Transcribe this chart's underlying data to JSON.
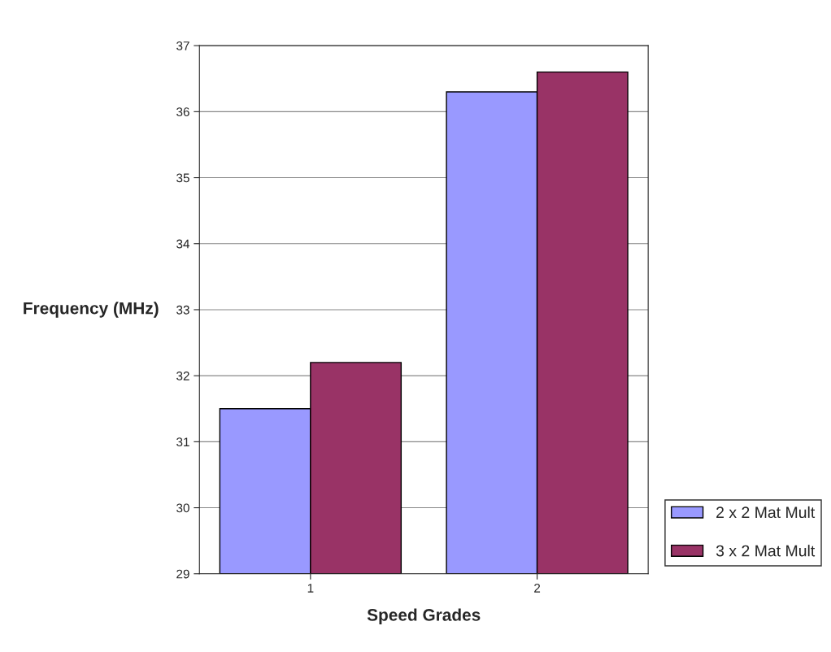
{
  "chart_data": {
    "type": "bar",
    "xlabel": "Speed Grades",
    "ylabel": "Frequency (MHz)",
    "categories": [
      "1",
      "2"
    ],
    "series": [
      {
        "name": "2 x 2 Mat Mult",
        "color": "#9999ff",
        "values": [
          31.5,
          36.3
        ]
      },
      {
        "name": "3 x 2 Mat Mult",
        "color": "#993366",
        "values": [
          32.2,
          36.6
        ]
      }
    ],
    "ylim": [
      29,
      37
    ],
    "yticks": [
      29,
      30,
      31,
      32,
      33,
      34,
      35,
      36,
      37
    ],
    "grid": "y",
    "legend": "bottom right"
  }
}
